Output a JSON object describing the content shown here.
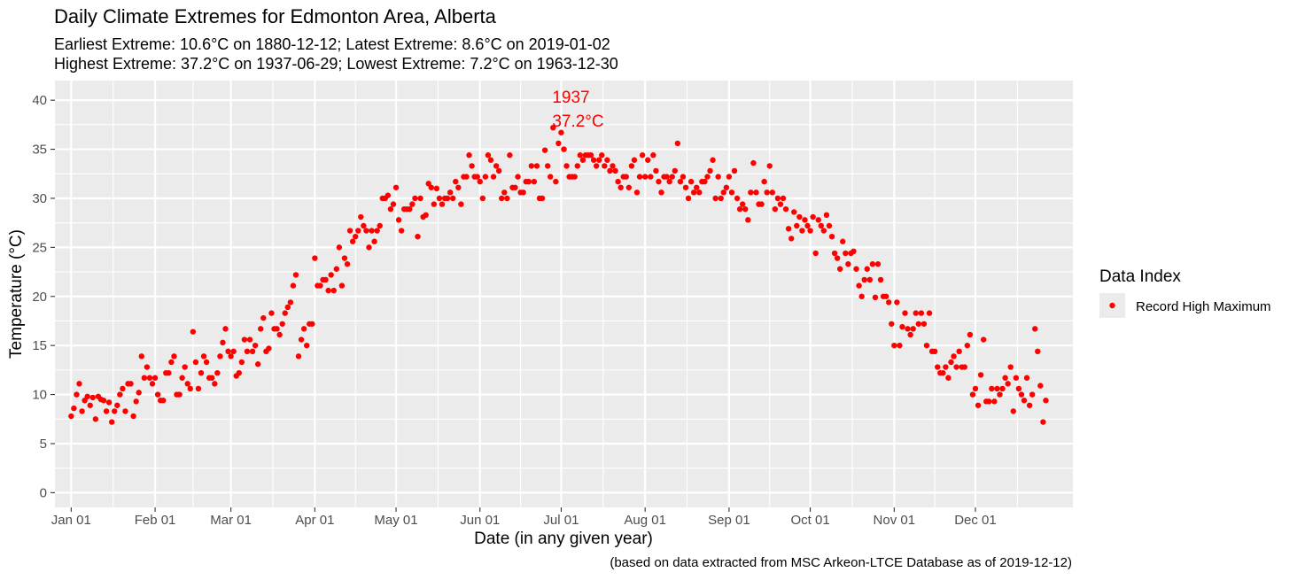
{
  "chart_data": {
    "type": "scatter",
    "title": "Daily Climate Extremes for Edmonton Area, Alberta",
    "subtitle_lines": [
      "Earliest Extreme: 10.6°C on 1880-12-12; Latest Extreme: 8.6°C on 2019-01-02",
      "Highest Extreme: 37.2°C on 1937-06-29; Lowest Extreme: 7.2°C on 1963-12-30"
    ],
    "xlabel": "Date (in any given year)",
    "ylabel": "Temperature (°C)",
    "caption": "(based on data extracted from MSC Arkeon-LTCE Database as of 2019-12-12)",
    "x_unit": "day of year",
    "xlim": [
      -5,
      371
    ],
    "ylim": [
      -1.5,
      42
    ],
    "x_ticks": [
      {
        "day": 1,
        "label": "Jan 01"
      },
      {
        "day": 32,
        "label": "Feb 01"
      },
      {
        "day": 60,
        "label": "Mar 01"
      },
      {
        "day": 91,
        "label": "Apr 01"
      },
      {
        "day": 121,
        "label": "May 01"
      },
      {
        "day": 152,
        "label": "Jun 01"
      },
      {
        "day": 182,
        "label": "Jul 01"
      },
      {
        "day": 213,
        "label": "Aug 01"
      },
      {
        "day": 244,
        "label": "Sep 01"
      },
      {
        "day": 274,
        "label": "Oct 01"
      },
      {
        "day": 305,
        "label": "Nov 01"
      },
      {
        "day": 335,
        "label": "Dec 01"
      }
    ],
    "y_ticks": [
      0,
      5,
      10,
      15,
      20,
      25,
      30,
      35,
      40
    ],
    "grid": true,
    "legend": {
      "title": "Data Index",
      "position": "right",
      "entries": [
        {
          "label": "Record High Maximum",
          "color": "#ff0000"
        }
      ]
    },
    "annotation": {
      "day": 180,
      "value": 37.2,
      "lines": [
        "1937",
        "37.2°C"
      ],
      "color": "#ff0000"
    },
    "series": [
      {
        "name": "Record High Maximum",
        "color": "#ff0000",
        "start_day": 1,
        "values": [
          7.8,
          8.6,
          10.0,
          11.1,
          8.3,
          9.4,
          9.8,
          8.9,
          9.7,
          7.5,
          9.8,
          9.5,
          9.4,
          8.3,
          9.2,
          7.2,
          8.3,
          8.9,
          10.0,
          10.6,
          8.3,
          11.1,
          11.1,
          7.8,
          9.3,
          10.2,
          13.9,
          11.7,
          12.8,
          11.7,
          11.1,
          11.7,
          10.0,
          9.4,
          9.4,
          12.2,
          12.2,
          13.3,
          13.9,
          10.0,
          10.0,
          11.7,
          12.8,
          11.1,
          10.6,
          16.4,
          13.3,
          10.6,
          12.2,
          13.9,
          13.3,
          11.7,
          11.7,
          11.1,
          12.2,
          13.9,
          15.3,
          16.7,
          14.4,
          13.9,
          14.4,
          11.9,
          12.2,
          13.3,
          15.6,
          14.4,
          15.6,
          14.4,
          15.0,
          13.1,
          16.7,
          17.8,
          14.4,
          14.7,
          18.3,
          16.7,
          16.7,
          16.1,
          17.2,
          18.3,
          18.9,
          19.4,
          21.1,
          22.2,
          13.9,
          15.6,
          16.7,
          15.0,
          17.2,
          17.2,
          23.9,
          21.1,
          21.1,
          21.7,
          21.7,
          20.6,
          22.2,
          20.6,
          22.8,
          25.0,
          21.1,
          23.9,
          23.3,
          26.7,
          25.6,
          26.1,
          26.7,
          28.1,
          27.2,
          26.7,
          25.0,
          26.7,
          25.6,
          26.7,
          27.2,
          30.0,
          30.0,
          30.3,
          28.9,
          29.4,
          31.1,
          27.8,
          26.7,
          28.9,
          28.9,
          28.9,
          29.4,
          30.0,
          26.1,
          30.0,
          28.1,
          28.3,
          31.5,
          31.1,
          29.4,
          31.0,
          30.0,
          29.4,
          30.0,
          30.0,
          30.6,
          30.0,
          31.7,
          31.1,
          29.4,
          32.2,
          32.2,
          34.4,
          33.3,
          32.2,
          32.2,
          31.7,
          30.0,
          32.2,
          34.4,
          33.9,
          32.2,
          33.3,
          32.8,
          30.0,
          30.6,
          30.0,
          34.4,
          31.1,
          31.1,
          32.2,
          30.6,
          30.6,
          31.7,
          31.7,
          33.3,
          31.7,
          33.3,
          30.0,
          30.0,
          34.9,
          33.3,
          32.2,
          37.2,
          31.7,
          35.6,
          36.7,
          35.0,
          33.3,
          32.2,
          32.2,
          32.2,
          33.3,
          34.4,
          33.9,
          34.4,
          34.4,
          34.4,
          33.9,
          33.3,
          33.9,
          34.4,
          33.3,
          33.9,
          32.8,
          33.3,
          32.8,
          31.7,
          31.1,
          32.2,
          32.2,
          31.1,
          33.3,
          33.9,
          30.6,
          32.2,
          34.4,
          32.2,
          33.9,
          32.2,
          34.4,
          32.8,
          31.7,
          30.6,
          32.2,
          32.2,
          31.7,
          32.2,
          32.8,
          35.6,
          31.7,
          32.2,
          31.1,
          30.0,
          31.7,
          30.6,
          31.1,
          30.6,
          31.7,
          31.7,
          32.2,
          32.8,
          33.9,
          30.0,
          32.2,
          30.0,
          30.6,
          31.1,
          32.2,
          30.6,
          32.8,
          30.0,
          28.9,
          29.4,
          28.9,
          27.8,
          30.6,
          33.6,
          30.6,
          29.4,
          29.4,
          31.7,
          30.6,
          33.3,
          30.6,
          28.9,
          30.0,
          29.4,
          30.0,
          28.9,
          26.9,
          25.9,
          28.6,
          27.2,
          28.1,
          26.7,
          27.8,
          27.2,
          26.7,
          28.1,
          24.4,
          27.8,
          27.2,
          26.7,
          28.3,
          27.2,
          26.1,
          24.4,
          23.9,
          22.8,
          25.6,
          24.4,
          23.3,
          24.4,
          24.6,
          22.8,
          21.1,
          20.0,
          21.7,
          22.8,
          21.7,
          23.3,
          19.9,
          23.3,
          21.7,
          20.0,
          20.0,
          19.4,
          17.2,
          15.0,
          19.4,
          15.0,
          16.9,
          18.3,
          16.7,
          16.1,
          16.7,
          18.3,
          17.2,
          18.3,
          17.2,
          15.0,
          18.3,
          14.4,
          14.4,
          12.8,
          12.2,
          12.2,
          12.8,
          11.7,
          13.3,
          13.9,
          12.8,
          14.4,
          12.8,
          12.8,
          15.0,
          16.1,
          10.0,
          10.6,
          8.9,
          12.0,
          15.6,
          9.3,
          9.3,
          10.6,
          9.3,
          10.6,
          10.0,
          10.6,
          11.7,
          11.1,
          12.8,
          8.3,
          11.7,
          10.6,
          10.0,
          9.4,
          11.7,
          8.9,
          10.0,
          16.7,
          14.4,
          10.9,
          7.2,
          9.4
        ]
      }
    ]
  }
}
